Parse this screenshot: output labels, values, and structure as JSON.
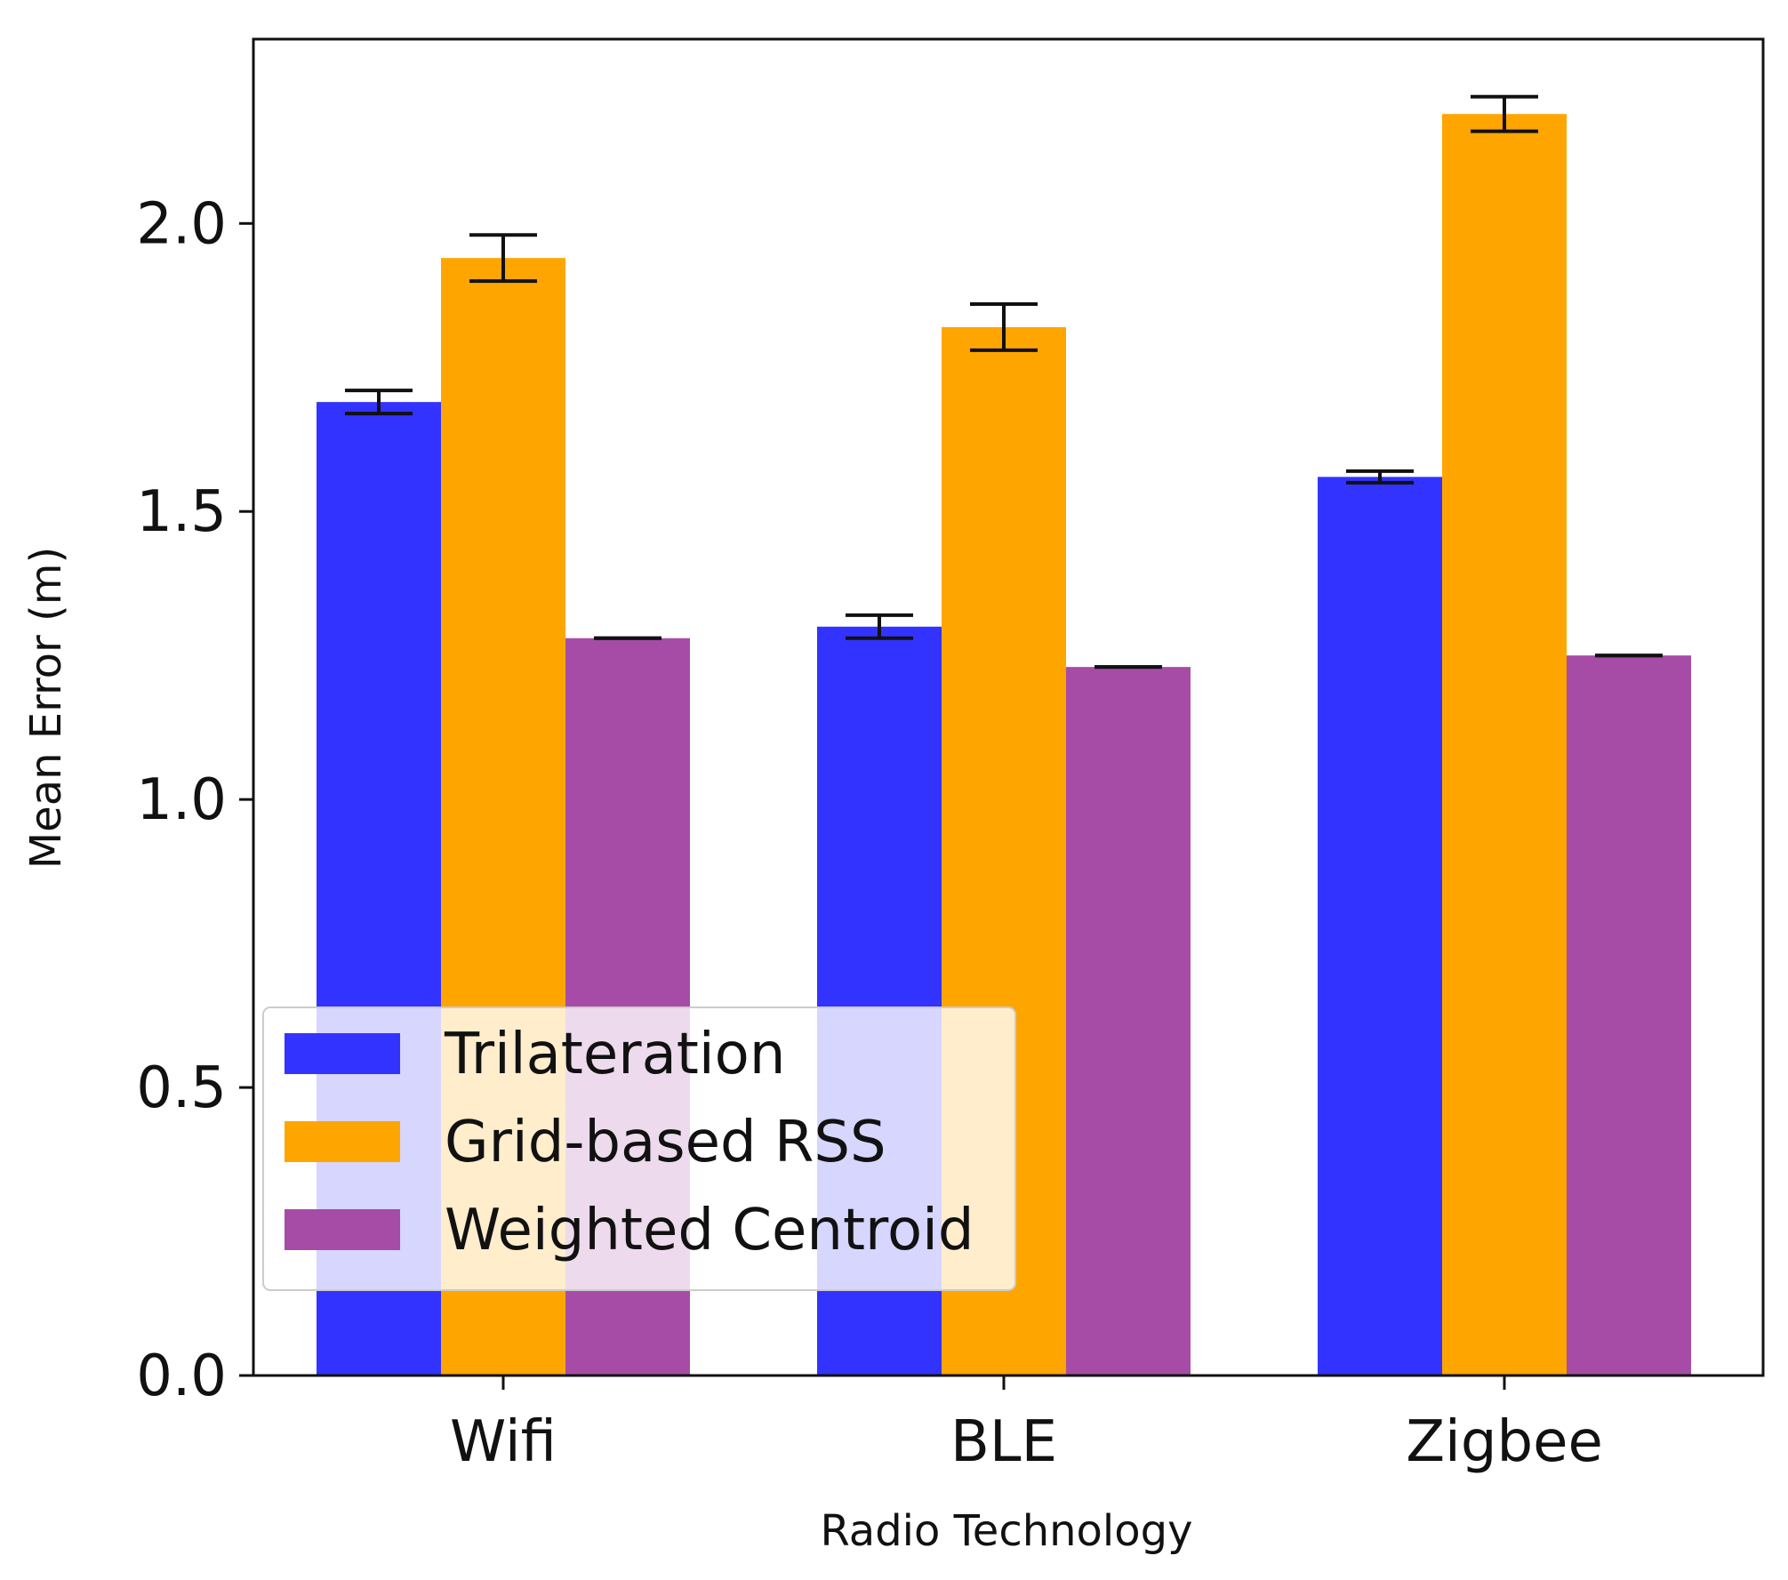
{
  "chart_data": {
    "type": "bar",
    "title": "",
    "xlabel": "Radio Technology",
    "ylabel": "Mean Error (m)",
    "categories": [
      "Wifi",
      "BLE",
      "Zigbee"
    ],
    "ylim": [
      0,
      2.32
    ],
    "yticks": [
      0.0,
      0.5,
      1.0,
      1.5,
      2.0
    ],
    "ytick_labels": [
      "0.0",
      "0.5",
      "1.0",
      "1.5",
      "2.0"
    ],
    "grid": false,
    "legend_position": "lower-left",
    "series": [
      {
        "name": "Trilateration",
        "color": "#3333ff",
        "values": [
          1.69,
          1.3,
          1.56
        ],
        "errors": [
          0.02,
          0.02,
          0.01
        ]
      },
      {
        "name": "Grid-based RSS",
        "color": "#ffa500",
        "values": [
          1.94,
          1.82,
          2.19
        ],
        "errors": [
          0.04,
          0.04,
          0.03
        ]
      },
      {
        "name": "Weighted Centroid",
        "color": "#a64ca6",
        "values": [
          1.28,
          1.23,
          1.25
        ],
        "errors": [
          0.0,
          0.0,
          0.0
        ]
      }
    ]
  }
}
